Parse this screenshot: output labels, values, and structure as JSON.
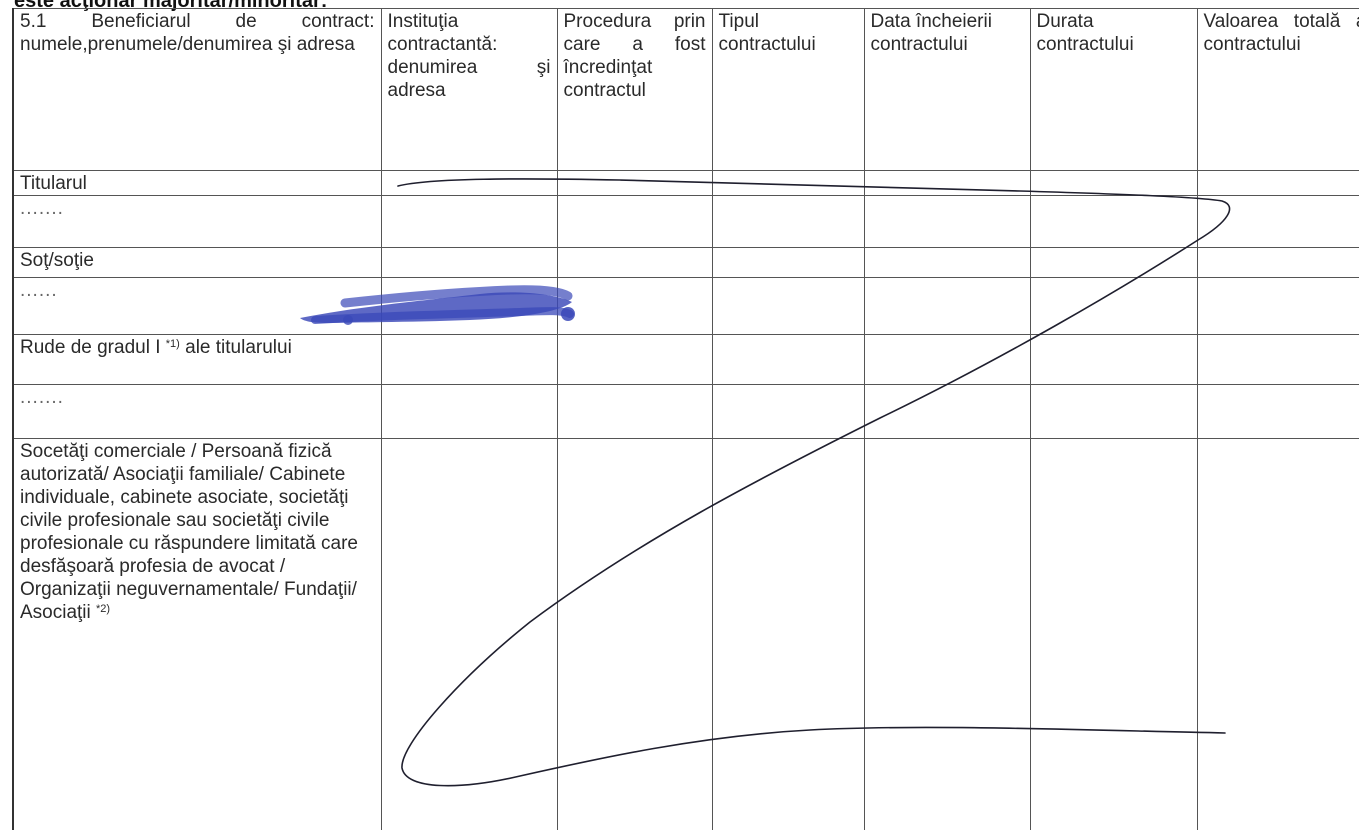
{
  "header_cut": "este acţionar majoritar/minoritar:",
  "table": {
    "headers": {
      "beneficiary": "5.1 Beneficiarul de contract: numele,prenumele/denumirea şi adresa",
      "institution": "Instituţia contractantă: denumirea şi adresa",
      "procedure": "Procedura prin care a fost încredinţat contractul",
      "type": "Tipul contractului",
      "date": "Data încheierii contractului",
      "duration": "Durata contractului",
      "value": "Valoarea totală a contractului"
    },
    "rows": {
      "titular": "Titularul",
      "dots1": ".......",
      "spouse": "Soţ/soţie",
      "dots2": "......",
      "relatives": "Rude de gradul I",
      "relatives_note": "*1)",
      "relatives_tail": "ale titularului",
      "dots3": ".......",
      "companies": "Socetăţi comerciale / Persoană fizică autorizată/ Asociaţii familiale/ Cabinete individuale, cabinete asociate, societăţi civile profesionale sau societăţi civile profesionale cu răspundere limitată care desfăşoară profesia de avocat / Organizaţii neguvernamentale/ Fundaţii/ Asociaţii",
      "companies_note": "*2)"
    }
  },
  "colors": {
    "ink_pen": "#1f1f2e",
    "redaction_blue": "#3a48b8"
  }
}
